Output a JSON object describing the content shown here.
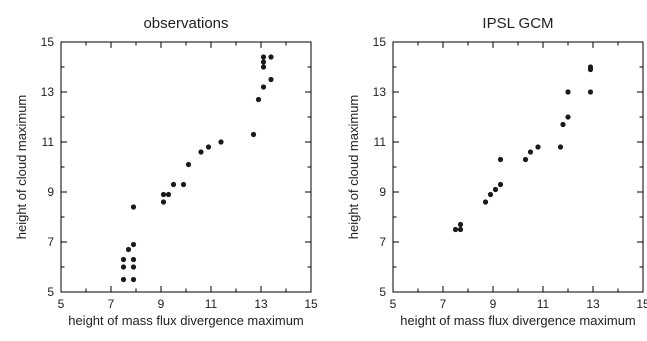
{
  "chart_data": [
    {
      "type": "scatter",
      "title": "observations",
      "xlabel": "height of mass flux divergence maximum",
      "ylabel": "height of cloud maximum",
      "xlim": [
        5,
        15
      ],
      "ylim": [
        5,
        15
      ],
      "xticks": [
        5,
        7,
        9,
        11,
        13,
        15
      ],
      "yticks": [
        5,
        7,
        9,
        11,
        13,
        15
      ],
      "grid": false,
      "marker_color": "#1a1a1a",
      "series": [
        {
          "points": [
            [
              7.5,
              6.3
            ],
            [
              7.5,
              6.0
            ],
            [
              7.5,
              5.5
            ],
            [
              7.7,
              6.7
            ],
            [
              7.9,
              8.4
            ],
            [
              7.9,
              6.9
            ],
            [
              7.9,
              6.3
            ],
            [
              7.9,
              6.0
            ],
            [
              7.9,
              5.5
            ],
            [
              9.1,
              8.9
            ],
            [
              9.1,
              8.6
            ],
            [
              9.3,
              8.9
            ],
            [
              9.5,
              9.3
            ],
            [
              9.9,
              9.3
            ],
            [
              10.1,
              10.1
            ],
            [
              10.6,
              10.6
            ],
            [
              10.9,
              10.8
            ],
            [
              11.4,
              11.0
            ],
            [
              12.7,
              11.3
            ],
            [
              12.9,
              12.7
            ],
            [
              13.1,
              13.2
            ],
            [
              13.1,
              14.0
            ],
            [
              13.1,
              14.2
            ],
            [
              13.1,
              14.4
            ],
            [
              13.4,
              13.5
            ],
            [
              13.4,
              14.4
            ]
          ]
        }
      ]
    },
    {
      "type": "scatter",
      "title": "IPSL GCM",
      "xlabel": "height of mass flux divergence maximum",
      "ylabel": "height of cloud maximum",
      "xlim": [
        5,
        15
      ],
      "ylim": [
        5,
        15
      ],
      "xticks": [
        5,
        7,
        9,
        11,
        13,
        15
      ],
      "yticks": [
        5,
        7,
        9,
        11,
        13,
        15
      ],
      "grid": false,
      "marker_color": "#1a1a1a",
      "series": [
        {
          "points": [
            [
              7.5,
              7.5
            ],
            [
              7.7,
              7.5
            ],
            [
              7.7,
              7.7
            ],
            [
              8.7,
              8.6
            ],
            [
              8.9,
              8.9
            ],
            [
              9.1,
              9.1
            ],
            [
              9.3,
              9.3
            ],
            [
              9.3,
              10.3
            ],
            [
              10.3,
              10.3
            ],
            [
              10.5,
              10.6
            ],
            [
              10.8,
              10.8
            ],
            [
              11.7,
              10.8
            ],
            [
              11.8,
              11.7
            ],
            [
              12.0,
              12.0
            ],
            [
              12.0,
              13.0
            ],
            [
              12.9,
              13.0
            ],
            [
              12.9,
              13.9
            ],
            [
              12.9,
              14.0
            ]
          ]
        }
      ]
    }
  ]
}
